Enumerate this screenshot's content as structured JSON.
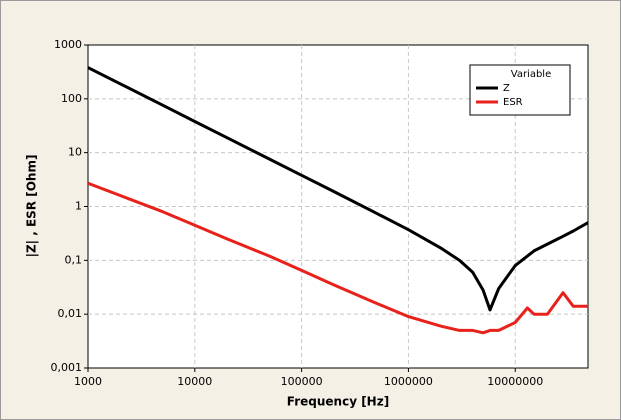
{
  "chart_data": {
    "type": "line",
    "xlabel": "Frequency [Hz]",
    "ylabel": "|Z| , ESR [Ohm]",
    "x": [
      1000,
      2000,
      5000,
      10000,
      20000,
      50000,
      100000,
      200000,
      500000,
      1000000,
      2000000,
      3000000,
      4000000,
      5000000,
      5800000,
      7000000,
      10000000,
      13000000,
      15000000,
      20000000,
      28000000,
      35000000,
      48000000
    ],
    "series": [
      {
        "name": "Z",
        "color": "#000000",
        "values": [
          380,
          190,
          76,
          38,
          19,
          7.6,
          3.8,
          1.9,
          0.75,
          0.37,
          0.17,
          0.1,
          0.06,
          0.028,
          0.012,
          0.03,
          0.08,
          0.12,
          0.15,
          0.2,
          0.28,
          0.35,
          0.5
        ]
      },
      {
        "name": "ESR",
        "color": "#e8221a",
        "values": [
          2.7,
          1.6,
          0.8,
          0.45,
          0.25,
          0.12,
          0.065,
          0.035,
          0.016,
          0.009,
          0.006,
          0.005,
          0.005,
          0.0045,
          0.005,
          0.005,
          0.007,
          0.013,
          0.01,
          0.01,
          0.025,
          0.014,
          0.014
        ]
      }
    ],
    "xlim": [
      1000,
      48000000
    ],
    "xticks": [
      1000,
      10000,
      100000,
      1000000,
      10000000
    ],
    "ylim": [
      0.001,
      1000
    ],
    "yticks": [
      {
        "value": 0.001,
        "label": "0,001"
      },
      {
        "value": 0.01,
        "label": "0,01"
      },
      {
        "value": 0.1,
        "label": "0,1"
      },
      1,
      10,
      100,
      1000
    ],
    "xscale": "log",
    "yscale": "log",
    "grid": true,
    "legend_title": "Variable",
    "legend": "upper right"
  }
}
